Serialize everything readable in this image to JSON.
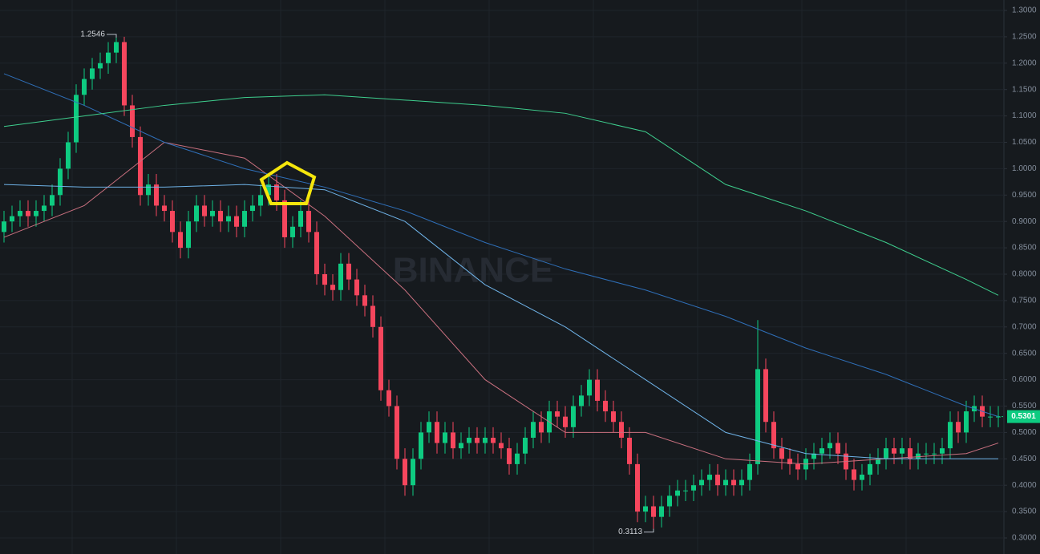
{
  "chart_data": {
    "type": "candlestick",
    "watermark": "BINANCE",
    "up_color": "#0ecb81",
    "down_color": "#f6465d",
    "ylim": [
      0.3,
      1.3
    ],
    "yticks": [
      {
        "value": 0.3,
        "label": "0.3000"
      },
      {
        "value": 0.35,
        "label": "0.3500"
      },
      {
        "value": 0.4,
        "label": "0.4000"
      },
      {
        "value": 0.45,
        "label": "0.4500"
      },
      {
        "value": 0.5,
        "label": "0.5000"
      },
      {
        "value": 0.55,
        "label": "0.5500"
      },
      {
        "value": 0.6,
        "label": "0.6000"
      },
      {
        "value": 0.65,
        "label": "0.6500"
      },
      {
        "value": 0.7,
        "label": "0.7000"
      },
      {
        "value": 0.75,
        "label": "0.7500"
      },
      {
        "value": 0.8,
        "label": "0.8000"
      },
      {
        "value": 0.85,
        "label": "0.8500"
      },
      {
        "value": 0.9,
        "label": "0.9000"
      },
      {
        "value": 0.95,
        "label": "0.9500"
      },
      {
        "value": 1.0,
        "label": "1.0000"
      },
      {
        "value": 1.05,
        "label": "1.0500"
      },
      {
        "value": 1.1,
        "label": "1.1000"
      },
      {
        "value": 1.15,
        "label": "1.1500"
      },
      {
        "value": 1.2,
        "label": "1.2000"
      },
      {
        "value": 1.25,
        "label": "1.2500"
      },
      {
        "value": 1.3,
        "label": "1.3000"
      }
    ],
    "grid": true,
    "open": [
      0.88,
      0.9,
      0.91,
      0.92,
      0.91,
      0.92,
      0.93,
      0.95,
      1.0,
      1.05,
      1.14,
      1.17,
      1.19,
      1.2,
      1.22,
      1.24,
      1.12,
      1.06,
      0.95,
      0.97,
      0.93,
      0.92,
      0.88,
      0.85,
      0.9,
      0.93,
      0.91,
      0.92,
      0.9,
      0.91,
      0.89,
      0.92,
      0.93,
      0.95,
      0.97,
      0.94,
      0.87,
      0.89,
      0.92,
      0.88,
      0.8,
      0.78,
      0.77,
      0.82,
      0.79,
      0.76,
      0.74,
      0.7,
      0.58,
      0.55,
      0.45,
      0.4,
      0.45,
      0.5,
      0.52,
      0.48,
      0.5,
      0.47,
      0.48,
      0.49,
      0.48,
      0.49,
      0.48,
      0.47,
      0.44,
      0.46,
      0.49,
      0.52,
      0.5,
      0.54,
      0.53,
      0.51,
      0.55,
      0.57,
      0.6,
      0.56,
      0.54,
      0.52,
      0.49,
      0.44,
      0.35,
      0.36,
      0.34,
      0.36,
      0.38,
      0.39,
      0.39,
      0.4,
      0.41,
      0.42,
      0.4,
      0.41,
      0.4,
      0.41,
      0.44,
      0.62,
      0.52,
      0.47,
      0.45,
      0.44,
      0.43,
      0.45,
      0.46,
      0.47,
      0.48,
      0.46,
      0.43,
      0.41,
      0.42,
      0.44,
      0.45,
      0.47,
      0.46,
      0.47,
      0.45,
      0.46,
      0.46,
      0.46,
      0.47,
      0.52,
      0.5,
      0.54,
      0.55,
      0.53,
      0.53
    ],
    "high": [
      0.92,
      0.93,
      0.94,
      0.94,
      0.94,
      0.95,
      0.97,
      1.02,
      1.07,
      1.16,
      1.19,
      1.21,
      1.22,
      1.24,
      1.2546,
      1.25,
      1.14,
      1.08,
      0.99,
      0.99,
      0.95,
      0.94,
      0.9,
      0.92,
      0.95,
      0.95,
      0.94,
      0.94,
      0.93,
      0.93,
      0.94,
      0.95,
      0.97,
      0.99,
      0.99,
      0.96,
      0.91,
      0.94,
      0.94,
      0.9,
      0.82,
      0.8,
      0.84,
      0.84,
      0.81,
      0.78,
      0.76,
      0.72,
      0.6,
      0.57,
      0.47,
      0.47,
      0.52,
      0.54,
      0.54,
      0.52,
      0.52,
      0.5,
      0.51,
      0.51,
      0.51,
      0.51,
      0.5,
      0.49,
      0.48,
      0.51,
      0.54,
      0.54,
      0.56,
      0.56,
      0.55,
      0.57,
      0.59,
      0.62,
      0.62,
      0.58,
      0.56,
      0.54,
      0.51,
      0.46,
      0.38,
      0.38,
      0.38,
      0.4,
      0.41,
      0.41,
      0.42,
      0.43,
      0.44,
      0.44,
      0.43,
      0.43,
      0.43,
      0.46,
      0.713,
      0.64,
      0.54,
      0.49,
      0.47,
      0.46,
      0.47,
      0.48,
      0.49,
      0.5,
      0.5,
      0.48,
      0.45,
      0.44,
      0.46,
      0.47,
      0.49,
      0.49,
      0.49,
      0.49,
      0.48,
      0.48,
      0.48,
      0.49,
      0.54,
      0.54,
      0.56,
      0.57,
      0.57,
      0.55,
      0.55
    ],
    "low": [
      0.86,
      0.88,
      0.89,
      0.89,
      0.89,
      0.9,
      0.91,
      0.93,
      0.98,
      1.03,
      1.12,
      1.15,
      1.17,
      1.18,
      1.2,
      1.1,
      1.04,
      0.93,
      0.93,
      0.91,
      0.9,
      0.86,
      0.83,
      0.83,
      0.88,
      0.89,
      0.89,
      0.88,
      0.88,
      0.87,
      0.87,
      0.9,
      0.91,
      0.93,
      0.92,
      0.85,
      0.85,
      0.87,
      0.86,
      0.78,
      0.76,
      0.75,
      0.75,
      0.77,
      0.74,
      0.72,
      0.68,
      0.56,
      0.53,
      0.43,
      0.38,
      0.38,
      0.43,
      0.48,
      0.46,
      0.46,
      0.45,
      0.45,
      0.46,
      0.46,
      0.46,
      0.46,
      0.45,
      0.42,
      0.42,
      0.44,
      0.47,
      0.48,
      0.48,
      0.51,
      0.49,
      0.49,
      0.53,
      0.55,
      0.54,
      0.52,
      0.5,
      0.47,
      0.42,
      0.33,
      0.33,
      0.3113,
      0.32,
      0.34,
      0.36,
      0.37,
      0.37,
      0.38,
      0.39,
      0.38,
      0.38,
      0.38,
      0.38,
      0.39,
      0.42,
      0.5,
      0.45,
      0.43,
      0.42,
      0.41,
      0.41,
      0.43,
      0.44,
      0.45,
      0.44,
      0.41,
      0.39,
      0.39,
      0.4,
      0.42,
      0.43,
      0.44,
      0.44,
      0.43,
      0.43,
      0.44,
      0.44,
      0.44,
      0.45,
      0.48,
      0.48,
      0.52,
      0.51,
      0.51,
      0.51
    ],
    "close": [
      0.9,
      0.91,
      0.92,
      0.91,
      0.92,
      0.93,
      0.95,
      1.0,
      1.05,
      1.14,
      1.17,
      1.19,
      1.2,
      1.22,
      1.24,
      1.12,
      1.06,
      0.95,
      0.97,
      0.93,
      0.92,
      0.88,
      0.85,
      0.9,
      0.93,
      0.91,
      0.92,
      0.9,
      0.91,
      0.89,
      0.92,
      0.93,
      0.95,
      0.97,
      0.94,
      0.87,
      0.89,
      0.92,
      0.88,
      0.8,
      0.78,
      0.77,
      0.82,
      0.79,
      0.76,
      0.74,
      0.7,
      0.58,
      0.55,
      0.45,
      0.4,
      0.45,
      0.5,
      0.52,
      0.48,
      0.5,
      0.47,
      0.48,
      0.49,
      0.48,
      0.49,
      0.48,
      0.47,
      0.44,
      0.46,
      0.49,
      0.52,
      0.5,
      0.54,
      0.53,
      0.51,
      0.55,
      0.57,
      0.6,
      0.56,
      0.54,
      0.52,
      0.49,
      0.44,
      0.35,
      0.36,
      0.34,
      0.36,
      0.38,
      0.39,
      0.39,
      0.4,
      0.41,
      0.42,
      0.4,
      0.41,
      0.4,
      0.41,
      0.44,
      0.62,
      0.52,
      0.47,
      0.45,
      0.44,
      0.43,
      0.45,
      0.46,
      0.47,
      0.48,
      0.46,
      0.43,
      0.41,
      0.42,
      0.44,
      0.45,
      0.47,
      0.46,
      0.47,
      0.45,
      0.46,
      0.46,
      0.46,
      0.47,
      0.52,
      0.5,
      0.54,
      0.55,
      0.53,
      0.53,
      0.5301
    ],
    "ma_x": [
      0,
      10,
      20,
      30,
      40,
      50,
      60,
      70,
      80,
      90,
      100,
      110,
      120,
      124
    ],
    "lines": [
      {
        "color": "#c9707f",
        "values": [
          0.87,
          0.93,
          1.05,
          1.02,
          0.91,
          0.77,
          0.6,
          0.5,
          0.5,
          0.45,
          0.44,
          0.45,
          0.46,
          0.48
        ]
      },
      {
        "color": "#6fb3e8",
        "values": [
          0.97,
          0.965,
          0.965,
          0.97,
          0.96,
          0.9,
          0.78,
          0.7,
          0.6,
          0.5,
          0.46,
          0.45,
          0.45,
          0.45
        ]
      },
      {
        "color": "#2f6fb8",
        "values": [
          1.18,
          1.12,
          1.05,
          1.0,
          0.965,
          0.92,
          0.86,
          0.81,
          0.77,
          0.72,
          0.66,
          0.61,
          0.55,
          0.53
        ]
      },
      {
        "color": "#3ecf8e",
        "values": [
          1.08,
          1.1,
          1.12,
          1.135,
          1.14,
          1.13,
          1.12,
          1.105,
          1.07,
          0.97,
          0.92,
          0.86,
          0.79,
          0.76
        ]
      }
    ]
  }
}
